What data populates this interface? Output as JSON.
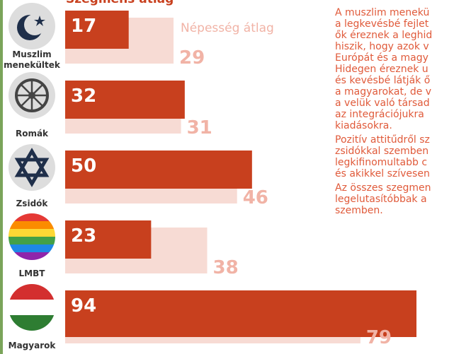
{
  "chart_data": {
    "type": "bar",
    "title": "Szegmens átlag",
    "categories": [
      "Muszlim menekültek",
      "Romák",
      "Zsidók",
      "LMBT",
      "Magyarok"
    ],
    "series": [
      {
        "name": "Szegmens átlag",
        "color": "#c8401e",
        "values": [
          17,
          32,
          50,
          23,
          94
        ]
      },
      {
        "name": "Népesség átlag",
        "color": "#f7dbd4",
        "label_color": "#f1b3a6",
        "values": [
          29,
          31,
          46,
          38,
          79
        ]
      }
    ],
    "xlim": [
      0,
      94
    ],
    "paragraphs": [
      [
        "A muszlim menekü",
        "a legkevésbé fejlet",
        "ők éreznek a leghid",
        "hiszik, hogy azok v",
        "Európát és a magy"
      ],
      [
        "Hidegen éreznek u",
        "és kevésbé látják ő",
        "a magyarokat, de v",
        "a velük való társad",
        "az integrációjukra",
        "kiadásokra."
      ],
      [
        "Pozitív attitűdről sz",
        "zsidókkal szemben",
        "legkifinomultabb c",
        "és akikkel szívesen"
      ],
      [
        "Az összes szegmen",
        "legelutasítóbbak a",
        "szemben."
      ]
    ]
  }
}
